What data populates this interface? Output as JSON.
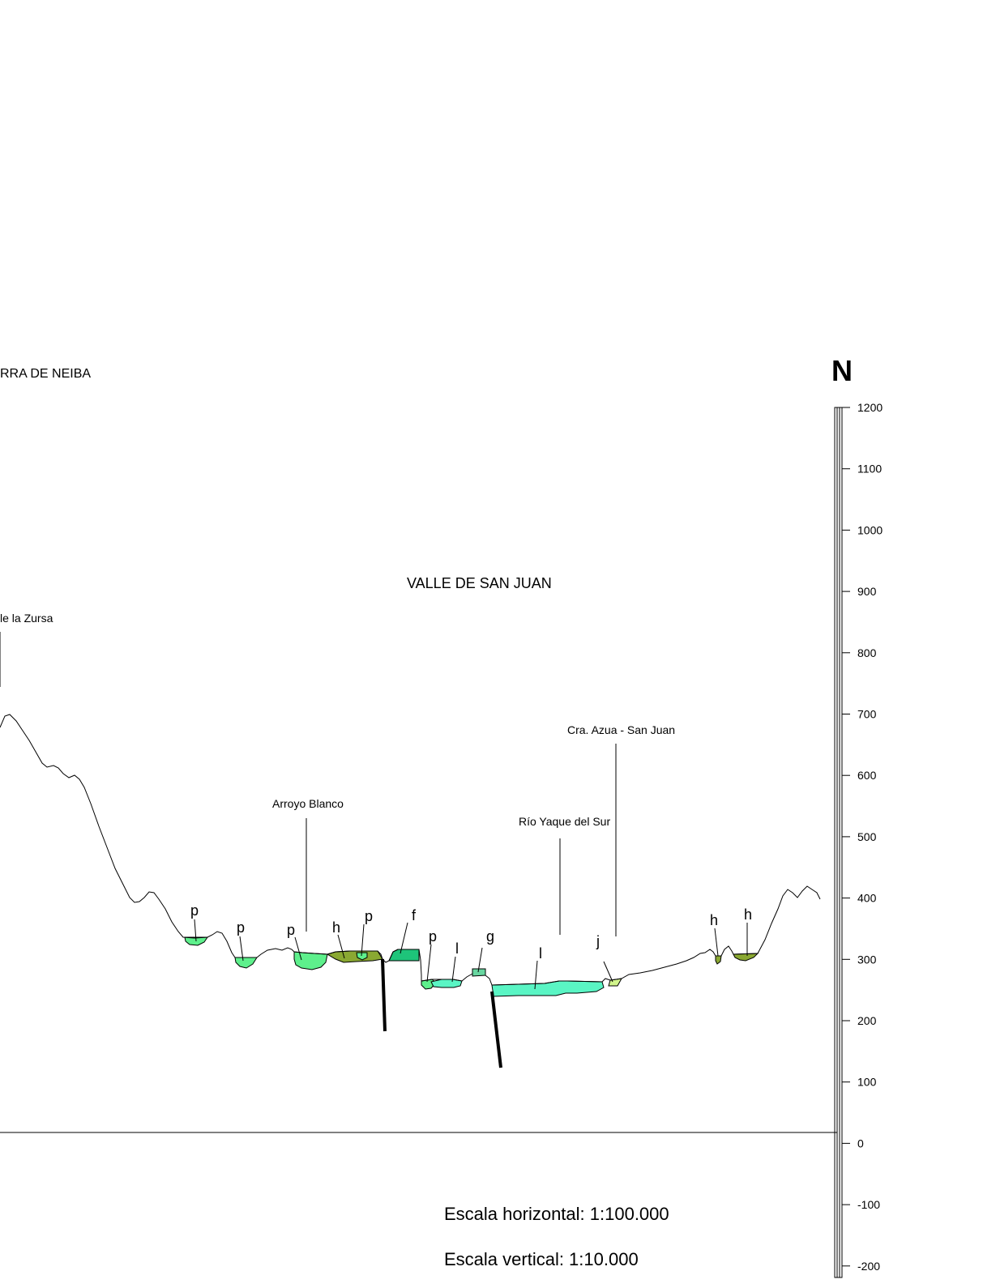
{
  "labels": {
    "range_left": "RRA DE NEIBA",
    "valley": "VALLE DE SAN JUAN",
    "zursa": "le la Zursa",
    "arroyo": "Arroyo Blanco",
    "rio": "Río Yaque del Sur",
    "carretera": "Cra. Azua - San Juan",
    "north": "N"
  },
  "units": [
    {
      "id": "p1",
      "text": "p"
    },
    {
      "id": "p2",
      "text": "p"
    },
    {
      "id": "p3",
      "text": "p"
    },
    {
      "id": "h1",
      "text": "h"
    },
    {
      "id": "p4",
      "text": "p"
    },
    {
      "id": "f1",
      "text": "f"
    },
    {
      "id": "p5",
      "text": "p"
    },
    {
      "id": "l1",
      "text": "l"
    },
    {
      "id": "g1",
      "text": "g"
    },
    {
      "id": "l2",
      "text": "l"
    },
    {
      "id": "j1",
      "text": "j"
    },
    {
      "id": "h2",
      "text": "h"
    },
    {
      "id": "h3",
      "text": "h"
    }
  ],
  "elevation_scale": {
    "ticks": [
      "1200",
      "1100",
      "1000",
      "900",
      "800",
      "700",
      "600",
      "500",
      "400",
      "300",
      "200",
      "100",
      "0",
      "-100",
      "-200"
    ]
  },
  "scale_text": {
    "horizontal": "Escala horizontal: 1:100.000",
    "vertical": "Escala vertical: 1:10.000"
  },
  "colors": {
    "p": "#5ef08c",
    "h": "#8aa832",
    "f": "#1ec47a",
    "l": "#5af5c4",
    "g": "#68d6a0",
    "j": "#d2f58c"
  }
}
